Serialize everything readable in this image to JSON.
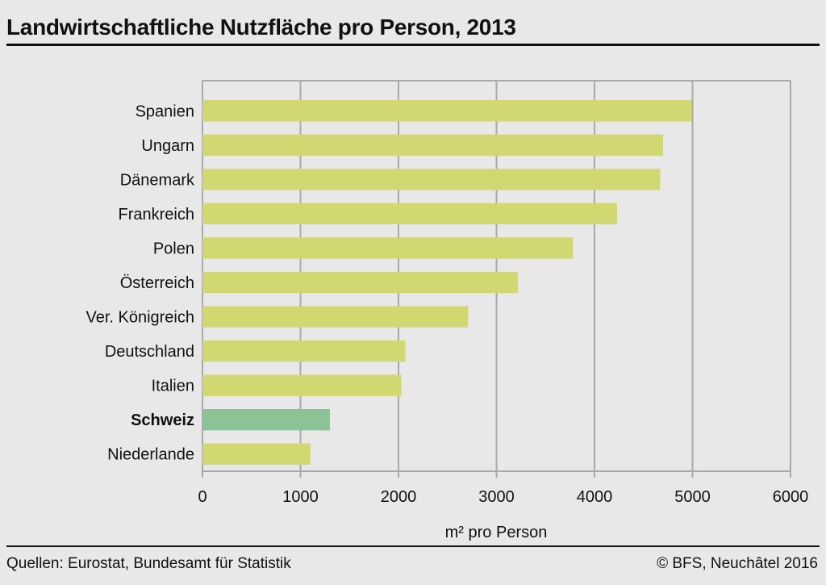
{
  "title": "Landwirtschaftliche Nutzfläche pro Person, 2013",
  "source": "Quellen: Eurostat, Bundesamt für Statistik",
  "copyright": "© BFS, Neuchâtel 2016",
  "colors": {
    "bar": "#d1d872",
    "highlight": "#8dc297",
    "grid": "#a9a9a9",
    "background": "#e8e8e8"
  },
  "chart_data": {
    "type": "bar",
    "orientation": "horizontal",
    "categories": [
      "Spanien",
      "Ungarn",
      "Dänemark",
      "Frankreich",
      "Polen",
      "Österreich",
      "Ver. Königreich",
      "Deutschland",
      "Italien",
      "Schweiz",
      "Niederlande"
    ],
    "values": [
      4990,
      4700,
      4670,
      4230,
      3780,
      3220,
      2710,
      2070,
      2030,
      1300,
      1100
    ],
    "highlight": [
      "Schweiz"
    ],
    "xlabel": "m² pro Person",
    "xlim": [
      0,
      6000
    ],
    "xticks": [
      0,
      1000,
      2000,
      3000,
      4000,
      5000,
      6000
    ],
    "grid": "vertical"
  }
}
